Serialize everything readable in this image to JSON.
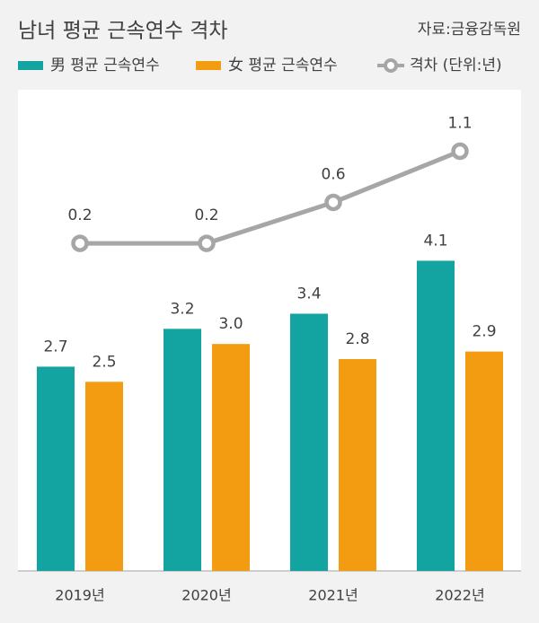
{
  "chart_data": {
    "type": "bar-line",
    "title": "남녀 평균 근속연수 격차",
    "source": "자료:금융감독원",
    "categories": [
      "2019년",
      "2020년",
      "2021년",
      "2022년"
    ],
    "series": [
      {
        "name": "男 평균 근속연수",
        "type": "bar",
        "color": "#13a3a0",
        "values": [
          2.7,
          3.2,
          3.4,
          4.1
        ],
        "value_labels": [
          "2.7",
          "3.2",
          "3.4",
          "4.1"
        ]
      },
      {
        "name": "女 평균 근속연수",
        "type": "bar",
        "color": "#f39c12",
        "values": [
          2.5,
          3,
          2.8,
          2.9
        ],
        "value_labels": [
          "2.5",
          "3.0",
          "2.8",
          "2.9"
        ]
      },
      {
        "name": "격차 (단위:년)",
        "type": "line",
        "axis": "y2",
        "color": "#a6a6a6",
        "values": [
          0.2,
          0.2,
          0.6,
          1.1
        ],
        "value_labels": [
          "0.2",
          "0.2",
          "0.6",
          "1.1"
        ]
      }
    ],
    "ylim": [
      0,
      6.36
    ],
    "y2lim": [
      -3,
      1.7
    ]
  }
}
